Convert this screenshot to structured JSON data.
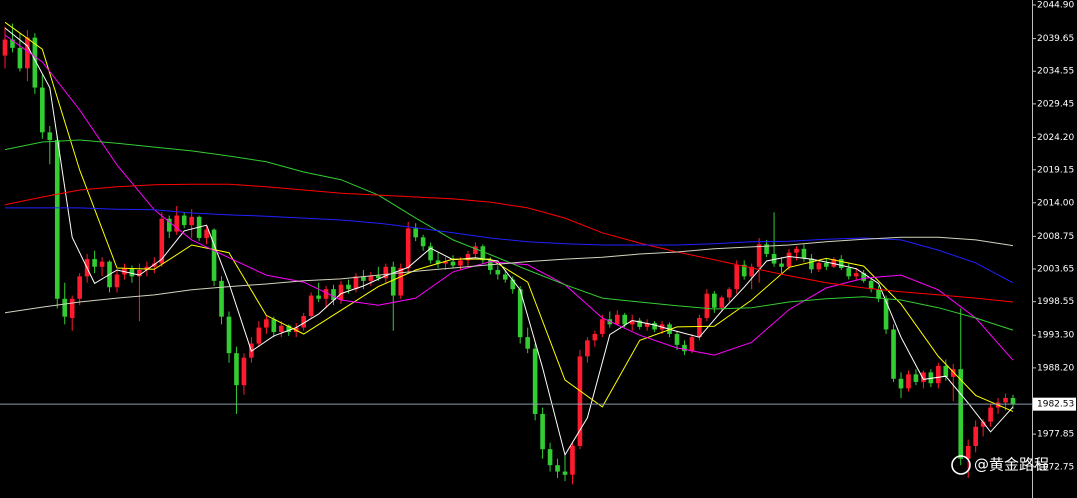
{
  "chart_data": {
    "type": "candlestick",
    "up_color": "#ff1a2e",
    "down_color": "#33cc33",
    "ohlc": [
      [
        2037.0,
        2041.5,
        2035.0,
        2039.5
      ],
      [
        2039.5,
        2042.0,
        2037.5,
        2038.2
      ],
      [
        2038.2,
        2040.5,
        2034.5,
        2035.0
      ],
      [
        2035.0,
        2041.0,
        2033.0,
        2039.8
      ],
      [
        2039.8,
        2040.5,
        2031.0,
        2032.0
      ],
      [
        2032.0,
        2034.0,
        2024.0,
        2025.0
      ],
      [
        2025.0,
        2026.0,
        2020.0,
        2023.8
      ],
      [
        2023.8,
        2024.5,
        1997.5,
        1999.0
      ],
      [
        1999.0,
        2001.5,
        1995.0,
        1996.2
      ],
      [
        1996.0,
        1999.5,
        1994.0,
        1999.0
      ],
      [
        1999.0,
        2003.0,
        1998.0,
        2002.5
      ],
      [
        2002.5,
        2006.0,
        2001.5,
        2005.2
      ],
      [
        2005.2,
        2006.5,
        2003.0,
        2004.0
      ],
      [
        2004.0,
        2005.5,
        2002.5,
        2004.8
      ],
      [
        2004.8,
        2005.0,
        2000.0,
        2000.8
      ],
      [
        2000.8,
        2003.5,
        2000.0,
        2002.8
      ],
      [
        2002.8,
        2004.5,
        2002.0,
        2003.8
      ],
      [
        2003.8,
        2004.2,
        2001.5,
        2002.5
      ],
      [
        2002.5,
        2004.5,
        1995.5,
        2003.5
      ],
      [
        2003.5,
        2004.8,
        2002.5,
        2004.0
      ],
      [
        2004.0,
        2005.5,
        2003.0,
        2004.5
      ],
      [
        2004.5,
        2012.5,
        2004.0,
        2011.5
      ],
      [
        2011.5,
        2012.0,
        2008.5,
        2009.5
      ],
      [
        2009.5,
        2013.5,
        2009.0,
        2012.0
      ],
      [
        2012.0,
        2012.5,
        2010.0,
        2010.5
      ],
      [
        2010.5,
        2013.0,
        2008.5,
        2011.8
      ],
      [
        2011.8,
        2012.0,
        2008.0,
        2008.5
      ],
      [
        2008.5,
        2010.5,
        2007.5,
        2009.8
      ],
      [
        2009.8,
        2010.0,
        2001.0,
        2001.8
      ],
      [
        2001.8,
        2002.5,
        1995.0,
        1996.2
      ],
      [
        1996.2,
        1997.0,
        1989.0,
        1990.5
      ],
      [
        1990.5,
        1991.5,
        1981.0,
        1985.5
      ],
      [
        1985.5,
        1990.5,
        1984.0,
        1989.8
      ],
      [
        1989.8,
        1993.0,
        1989.0,
        1992.0
      ],
      [
        1992.0,
        1995.5,
        1991.5,
        1994.5
      ],
      [
        1994.5,
        1996.5,
        1993.5,
        1995.8
      ],
      [
        1995.8,
        1996.2,
        1993.0,
        1993.8
      ],
      [
        1993.8,
        1995.5,
        1993.0,
        1994.8
      ],
      [
        1994.8,
        1995.0,
        1993.2,
        1993.8
      ],
      [
        1993.8,
        1995.2,
        1993.0,
        1994.5
      ],
      [
        1994.5,
        1996.8,
        1994.0,
        1996.3
      ],
      [
        1996.3,
        2000.0,
        1996.0,
        1999.5
      ],
      [
        1999.5,
        2001.5,
        1998.5,
        1999.0
      ],
      [
        1999.0,
        2001.0,
        1997.5,
        2000.5
      ],
      [
        2000.5,
        2001.2,
        1998.0,
        1998.8
      ],
      [
        1998.8,
        2001.8,
        1998.2,
        2001.2
      ],
      [
        2001.2,
        2002.0,
        1999.8,
        2000.5
      ],
      [
        2000.5,
        2003.0,
        2000.0,
        2002.5
      ],
      [
        2002.5,
        2003.5,
        2000.5,
        2001.8
      ],
      [
        2001.8,
        2003.2,
        2001.0,
        2002.6
      ],
      [
        2002.6,
        2004.0,
        2001.8,
        2002.2
      ],
      [
        2002.2,
        2004.5,
        2001.5,
        2004.0
      ],
      [
        2004.0,
        2004.8,
        1994.0,
        1999.5
      ],
      [
        1999.5,
        2004.5,
        1999.0,
        2003.8
      ],
      [
        2003.8,
        2011.0,
        2003.0,
        2010.0
      ],
      [
        2010.0,
        2010.8,
        2008.0,
        2008.6
      ],
      [
        2008.6,
        2009.0,
        2006.5,
        2007.2
      ],
      [
        2007.2,
        2007.8,
        2004.5,
        2005.0
      ],
      [
        2005.0,
        2006.2,
        2003.8,
        2004.5
      ],
      [
        2004.5,
        2005.5,
        2003.5,
        2004.8
      ],
      [
        2004.8,
        2005.8,
        2003.8,
        2004.2
      ],
      [
        2004.2,
        2005.5,
        2003.5,
        2005.0
      ],
      [
        2005.0,
        2006.5,
        2004.0,
        2006.0
      ],
      [
        2006.0,
        2007.8,
        2005.5,
        2007.2
      ],
      [
        2007.2,
        2007.5,
        2004.5,
        2005.0
      ],
      [
        2005.0,
        2005.5,
        2002.8,
        2003.5
      ],
      [
        2003.5,
        2004.2,
        2002.0,
        2002.8
      ],
      [
        2002.8,
        2003.5,
        2001.5,
        2002.0
      ],
      [
        2002.0,
        2002.5,
        1999.8,
        2000.5
      ],
      [
        2000.5,
        2001.0,
        1992.0,
        1993.0
      ],
      [
        1993.0,
        1994.5,
        1990.5,
        1991.2
      ],
      [
        1991.2,
        1992.0,
        1980.0,
        1981.0
      ],
      [
        1981.0,
        1982.0,
        1974.0,
        1975.5
      ],
      [
        1975.5,
        1976.5,
        1972.0,
        1973.0
      ],
      [
        1973.0,
        1974.0,
        1971.0,
        1972.0
      ],
      [
        1972.0,
        1974.5,
        1970.5,
        1971.5
      ],
      [
        1971.5,
        1976.5,
        1970.0,
        1976.0
      ],
      [
        1976.0,
        1991.0,
        1975.5,
        1990.0
      ],
      [
        1990.0,
        1993.0,
        1989.0,
        1992.5
      ],
      [
        1992.5,
        1994.0,
        1991.5,
        1993.5
      ],
      [
        1993.5,
        1996.5,
        1993.0,
        1995.8
      ],
      [
        1995.8,
        1997.0,
        1994.5,
        1995.0
      ],
      [
        1995.0,
        1997.2,
        1994.8,
        1996.5
      ],
      [
        1996.5,
        1996.8,
        1994.5,
        1995.0
      ],
      [
        1995.0,
        1996.5,
        1994.0,
        1995.6
      ],
      [
        1995.6,
        1996.0,
        1994.2,
        1994.6
      ],
      [
        1994.6,
        1995.8,
        1994.0,
        1995.2
      ],
      [
        1995.2,
        1995.5,
        1993.8,
        1994.2
      ],
      [
        1994.2,
        1995.5,
        1993.5,
        1995.0
      ],
      [
        1995.0,
        1995.3,
        1993.0,
        1993.5
      ],
      [
        1993.5,
        1994.0,
        1991.0,
        1991.8
      ],
      [
        1991.8,
        1992.5,
        1990.2,
        1990.8
      ],
      [
        1990.8,
        1993.5,
        1990.5,
        1993.0
      ],
      [
        1993.0,
        1996.5,
        1992.5,
        1996.0
      ],
      [
        1996.0,
        2000.5,
        1995.5,
        1999.8
      ],
      [
        1999.8,
        2000.2,
        1996.8,
        1997.6
      ],
      [
        1997.6,
        1999.5,
        1997.0,
        1999.2
      ],
      [
        1999.2,
        2000.8,
        1998.5,
        2000.5
      ],
      [
        2000.5,
        2005.0,
        1999.8,
        2004.3
      ],
      [
        2004.3,
        2005.0,
        2002.0,
        2002.5
      ],
      [
        2002.5,
        2004.5,
        2000.5,
        2004.0
      ],
      [
        2004.0,
        2008.5,
        2001.5,
        2007.5
      ],
      [
        2007.5,
        2008.2,
        2005.5,
        2006.0
      ],
      [
        2006.0,
        2012.5,
        2004.0,
        2004.5
      ],
      [
        2004.5,
        2005.5,
        2003.0,
        2004.0
      ],
      [
        2004.0,
        2006.8,
        2003.5,
        2006.2
      ],
      [
        2006.2,
        2007.2,
        2005.0,
        2006.8
      ],
      [
        2006.8,
        2007.5,
        2004.8,
        2005.3
      ],
      [
        2005.3,
        2006.0,
        2003.0,
        2003.6
      ],
      [
        2003.6,
        2005.0,
        2003.2,
        2004.6
      ],
      [
        2004.6,
        2005.2,
        2003.5,
        2004.0
      ],
      [
        2004.0,
        2005.5,
        2003.8,
        2005.2
      ],
      [
        2005.2,
        2005.8,
        2003.5,
        2003.8
      ],
      [
        2003.8,
        2004.5,
        2002.0,
        2002.5
      ],
      [
        2002.5,
        2003.8,
        2002.0,
        2003.0
      ],
      [
        2003.0,
        2003.5,
        2001.5,
        2001.8
      ],
      [
        2001.8,
        2002.2,
        2000.0,
        2000.5
      ],
      [
        2000.5,
        2001.0,
        1998.5,
        1999.0
      ],
      [
        1999.0,
        1999.5,
        1993.5,
        1994.2
      ],
      [
        1994.2,
        1995.0,
        1986.0,
        1986.5
      ],
      [
        1986.5,
        1987.5,
        1983.5,
        1985.0
      ],
      [
        1985.0,
        1987.8,
        1984.5,
        1987.2
      ],
      [
        1987.2,
        1988.0,
        1985.5,
        1986.0
      ],
      [
        1986.0,
        1987.8,
        1985.0,
        1987.5
      ],
      [
        1987.5,
        1988.0,
        1985.2,
        1985.8
      ],
      [
        1985.8,
        1989.0,
        1985.0,
        1988.5
      ],
      [
        1988.5,
        1989.5,
        1986.2,
        1986.8
      ],
      [
        1986.8,
        1988.8,
        1983.0,
        1988.0
      ],
      [
        1988.0,
        1997.5,
        1973.0,
        1974.0
      ],
      [
        1974.0,
        1977.0,
        1971.0,
        1976.0
      ],
      [
        1976.0,
        1980.0,
        1975.0,
        1979.0
      ],
      [
        1979.0,
        1980.2,
        1977.5,
        1979.8
      ],
      [
        1979.8,
        1982.5,
        1979.0,
        1982.0
      ],
      [
        1982.0,
        1983.5,
        1981.0,
        1982.8
      ],
      [
        1982.8,
        1984.2,
        1981.5,
        1983.5
      ],
      [
        1983.5,
        1984.0,
        1981.8,
        1982.53
      ]
    ],
    "lines": [
      {
        "color": "#ffffff",
        "x": [
          0,
          3,
          6,
          9,
          12,
          15,
          18,
          21,
          24,
          27,
          30,
          33,
          36,
          39,
          42,
          45,
          48,
          51,
          54,
          57,
          60,
          63,
          66,
          69,
          72,
          75,
          78,
          81,
          84,
          87,
          90,
          93,
          96,
          99,
          102,
          105,
          108,
          111,
          114,
          117,
          120,
          123,
          126,
          129,
          132,
          135
        ],
        "values": [
          2041.3,
          2038.5,
          2032.0,
          2008.6,
          2001.4,
          2003.5,
          2002.7,
          2005.2,
          2009.6,
          2010.5,
          2001.4,
          1990.8,
          1993.2,
          1994.5,
          1996.6,
          1999.8,
          2001.0,
          2002.6,
          2003.9,
          2006.9,
          2005.1,
          2005.4,
          2004.9,
          2000.4,
          1988.2,
          1974.6,
          1980.4,
          1993.4,
          1995.6,
          1994.9,
          1993.9,
          1993.0,
          1997.1,
          2000.8,
          2004.9,
          2005.6,
          2005.2,
          2004.5,
          2003.7,
          2001.4,
          1993.0,
          1986.4,
          1986.9,
          1982.7,
          1978.2,
          1982.1
        ]
      },
      {
        "color": "#ffff00",
        "x": [
          0,
          5,
          10,
          15,
          20,
          25,
          30,
          35,
          40,
          45,
          50,
          55,
          60,
          65,
          70,
          75,
          80,
          85,
          90,
          95,
          100,
          105,
          110,
          115,
          120,
          125,
          130,
          135
        ],
        "values": [
          2042.2,
          2038.0,
          2019.1,
          2003.8,
          2003.6,
          2007.4,
          2006.2,
          1996.4,
          1993.5,
          1997.2,
          2000.9,
          2003.5,
          2005.2,
          2005.2,
          2001.6,
          1986.3,
          1982.1,
          1992.5,
          1994.6,
          1994.7,
          1998.8,
          2003.9,
          2005.3,
          2004.1,
          1998.2,
          1990.0,
          1983.9,
          1981.4
        ]
      },
      {
        "color": "#ff00ff",
        "x": [
          0,
          5,
          10,
          15,
          20,
          25,
          30,
          35,
          40,
          45,
          50,
          55,
          60,
          65,
          70,
          75,
          80,
          85,
          90,
          95,
          100,
          105,
          110,
          115,
          120,
          125,
          130,
          135
        ],
        "values": [
          2040.2,
          2036.0,
          2028.5,
          2019.9,
          2012.9,
          2008.2,
          2005.4,
          2002.7,
          2001.6,
          1998.8,
          1998.0,
          1999.1,
          2003.2,
          2004.8,
          2004.3,
          2001.2,
          1996.0,
          1993.3,
          1991.3,
          1990.2,
          1992.2,
          1997.3,
          2000.7,
          2002.2,
          2002.7,
          2000.4,
          1996.0,
          1989.4
        ]
      },
      {
        "color": "#33cc33",
        "x": [
          0,
          5,
          10,
          15,
          20,
          25,
          30,
          35,
          40,
          45,
          50,
          55,
          60,
          65,
          70,
          75,
          80,
          85,
          90,
          95,
          100,
          105,
          110,
          115,
          120,
          125,
          130,
          135
        ],
        "values": [
          2022.3,
          2023.5,
          2023.8,
          2023.3,
          2022.7,
          2022.1,
          2021.3,
          2020.4,
          2018.8,
          2017.6,
          2015.2,
          2011.6,
          2008.2,
          2005.9,
          2003.5,
          2001.2,
          1999.1,
          1998.5,
          1997.9,
          1997.4,
          1997.6,
          1998.5,
          1999.0,
          1999.3,
          1998.8,
          1997.6,
          1996.0,
          1994.1
        ]
      },
      {
        "color": "#ff0000",
        "x": [
          0,
          5,
          10,
          15,
          20,
          25,
          30,
          35,
          40,
          45,
          50,
          55,
          60,
          65,
          70,
          75,
          80,
          85,
          90,
          95,
          100,
          105,
          110,
          115,
          120,
          125,
          130,
          135
        ],
        "values": [
          2013.7,
          2014.9,
          2016.0,
          2016.5,
          2016.8,
          2016.9,
          2016.9,
          2016.5,
          2016.0,
          2015.5,
          2015.2,
          2014.9,
          2014.6,
          2014.1,
          2013.2,
          2011.6,
          2009.3,
          2007.7,
          2006.3,
          2005.1,
          2003.8,
          2002.6,
          2001.5,
          2000.7,
          2000.1,
          1999.6,
          1999.1,
          1998.5
        ]
      },
      {
        "color": "#2020ff",
        "x": [
          0,
          5,
          10,
          15,
          20,
          25,
          30,
          35,
          40,
          45,
          50,
          55,
          60,
          65,
          70,
          75,
          80,
          85,
          90,
          95,
          100,
          105,
          110,
          115,
          120,
          125,
          130,
          135
        ],
        "values": [
          2013.2,
          2013.2,
          2013.2,
          2013.0,
          2012.9,
          2012.4,
          2012.1,
          2011.9,
          2011.6,
          2011.3,
          2010.8,
          2010.1,
          2009.3,
          2008.5,
          2007.9,
          2007.6,
          2007.4,
          2007.4,
          2007.4,
          2007.6,
          2007.9,
          2008.0,
          2008.3,
          2008.5,
          2008.2,
          2006.6,
          2004.6,
          2001.5
        ]
      },
      {
        "color": "#d2d2be",
        "x": [
          0,
          5,
          10,
          15,
          20,
          25,
          30,
          35,
          40,
          45,
          50,
          55,
          60,
          65,
          70,
          75,
          80,
          85,
          90,
          95,
          100,
          105,
          110,
          115,
          120,
          125,
          130,
          135
        ],
        "values": [
          1996.8,
          1997.7,
          1998.5,
          1999.1,
          1999.6,
          2000.4,
          2000.9,
          2001.3,
          2001.8,
          2002.1,
          2002.7,
          2003.3,
          2003.8,
          2004.3,
          2004.8,
          2005.2,
          2005.5,
          2006.0,
          2006.3,
          2006.8,
          2007.1,
          2007.4,
          2007.9,
          2008.3,
          2008.6,
          2008.6,
          2008.2,
          2007.3
        ]
      }
    ],
    "ylim": [
      1967.87,
      2045.68
    ],
    "yticks": [
      {
        "value": 2044.9,
        "label": "2044.90"
      },
      2039.65,
      2034.55,
      2029.45,
      {
        "value": 2024.2,
        "label": "2024.20"
      },
      2019.15,
      {
        "value": 2014,
        "label": "2014.00"
      },
      2008.75,
      2003.65,
      1998.55,
      {
        "value": 1993.3,
        "label": "1993.30"
      },
      {
        "value": 1988.2,
        "label": "1988.20"
      },
      1977.85,
      1972.75
    ],
    "last_price": 1982.53
  },
  "watermark": "@黄金路程"
}
